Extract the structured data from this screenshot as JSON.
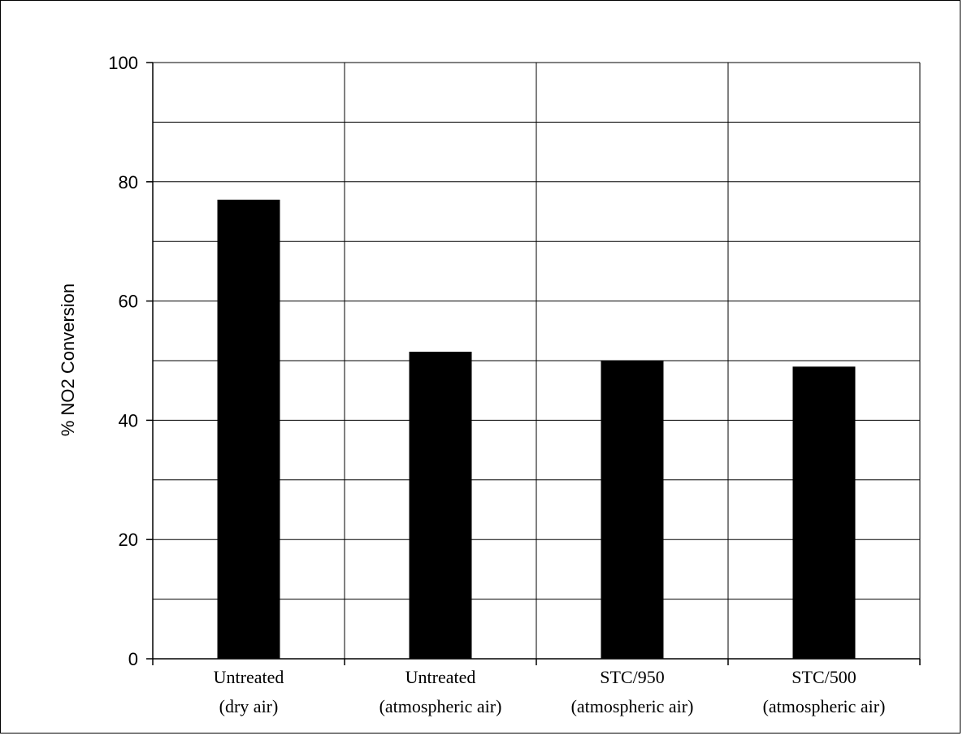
{
  "chart_data": {
    "type": "bar",
    "title": "",
    "xlabel": "",
    "ylabel": "% NO2 Conversion",
    "ylim": [
      0,
      100
    ],
    "yticks": [
      0,
      20,
      40,
      60,
      80,
      100
    ],
    "grid": true,
    "categories": [
      [
        "Untreated",
        "(dry air)"
      ],
      [
        "Untreated",
        "(atmospheric air)"
      ],
      [
        "STC/950",
        "(atmospheric air)"
      ],
      [
        "STC/500",
        "(atmospheric air)"
      ]
    ],
    "values": [
      77,
      51.5,
      50,
      49
    ],
    "bar_color": "#000000"
  }
}
